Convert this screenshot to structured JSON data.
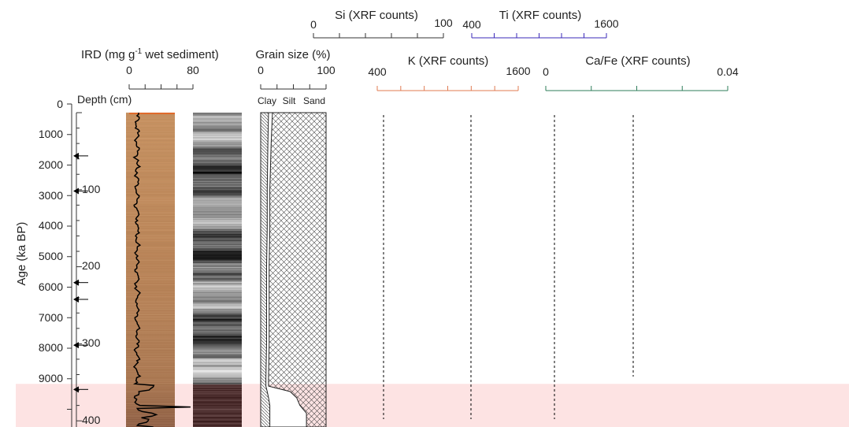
{
  "chart_data": {
    "type": "line",
    "age_axis": {
      "label": "Age (ka BP)",
      "ticks": [
        "0",
        "1000",
        "2000",
        "3000",
        "4000",
        "5000",
        "6000",
        "7000",
        "8000",
        "9000"
      ]
    },
    "depth_axis": {
      "label": "Depth (cm)",
      "ticks": [
        "100",
        "200",
        "300",
        "400"
      ],
      "range": [
        0,
        408
      ]
    },
    "ird": {
      "title_main": "IRD (mg g",
      "title_exp": "-1",
      "title_rest": " wet sediment)",
      "tick_min": "0",
      "tick_max": "80",
      "range": [
        0,
        80
      ],
      "color": "#000000"
    },
    "grain": {
      "title": "Grain size (%)",
      "tick_min": "0",
      "tick_max": "100",
      "labels": [
        "Clay",
        "Silt",
        "Sand"
      ],
      "depth": [
        0,
        40,
        100,
        150,
        200,
        250,
        300,
        345,
        355,
        362,
        370,
        380,
        390,
        408
      ],
      "clay_top": [
        12,
        11,
        10,
        10,
        9,
        9,
        9,
        8,
        8,
        10,
        12,
        14,
        14,
        14
      ],
      "silt_top": [
        18,
        16,
        14,
        14,
        13,
        13,
        13,
        12,
        12,
        45,
        55,
        60,
        70,
        70
      ]
    },
    "si": {
      "title": "Si (XRF counts)",
      "tick_min": "0",
      "tick_max": "100",
      "range": [
        0,
        100
      ],
      "mean": 50,
      "color": "#111111"
    },
    "ti": {
      "title": "Ti (XRF counts)",
      "tick_min": "400",
      "tick_max": "1600",
      "range": [
        400,
        1600
      ],
      "mean": 1000,
      "color": "#3a28b8"
    },
    "k": {
      "title": "K (XRF counts)",
      "tick_min": "400",
      "tick_max": "1600",
      "range": [
        400,
        1600
      ],
      "mean": 1000,
      "color": "#e07b52"
    },
    "cafe": {
      "title": "Ca/Fe (XRF counts)",
      "tick_min": "0",
      "tick_max": "0.04",
      "range": [
        0,
        0.04
      ],
      "mean": 0.02,
      "color": "#2e7d5a"
    },
    "arrows_age": [
      1700,
      2850,
      5850,
      6400,
      7900,
      9350
    ],
    "shading_depth_start": 352,
    "colors": {
      "shade": "#fde3e3",
      "core_photo": "#c08a5d",
      "smoothed_gray": "#9a9a9a"
    }
  }
}
